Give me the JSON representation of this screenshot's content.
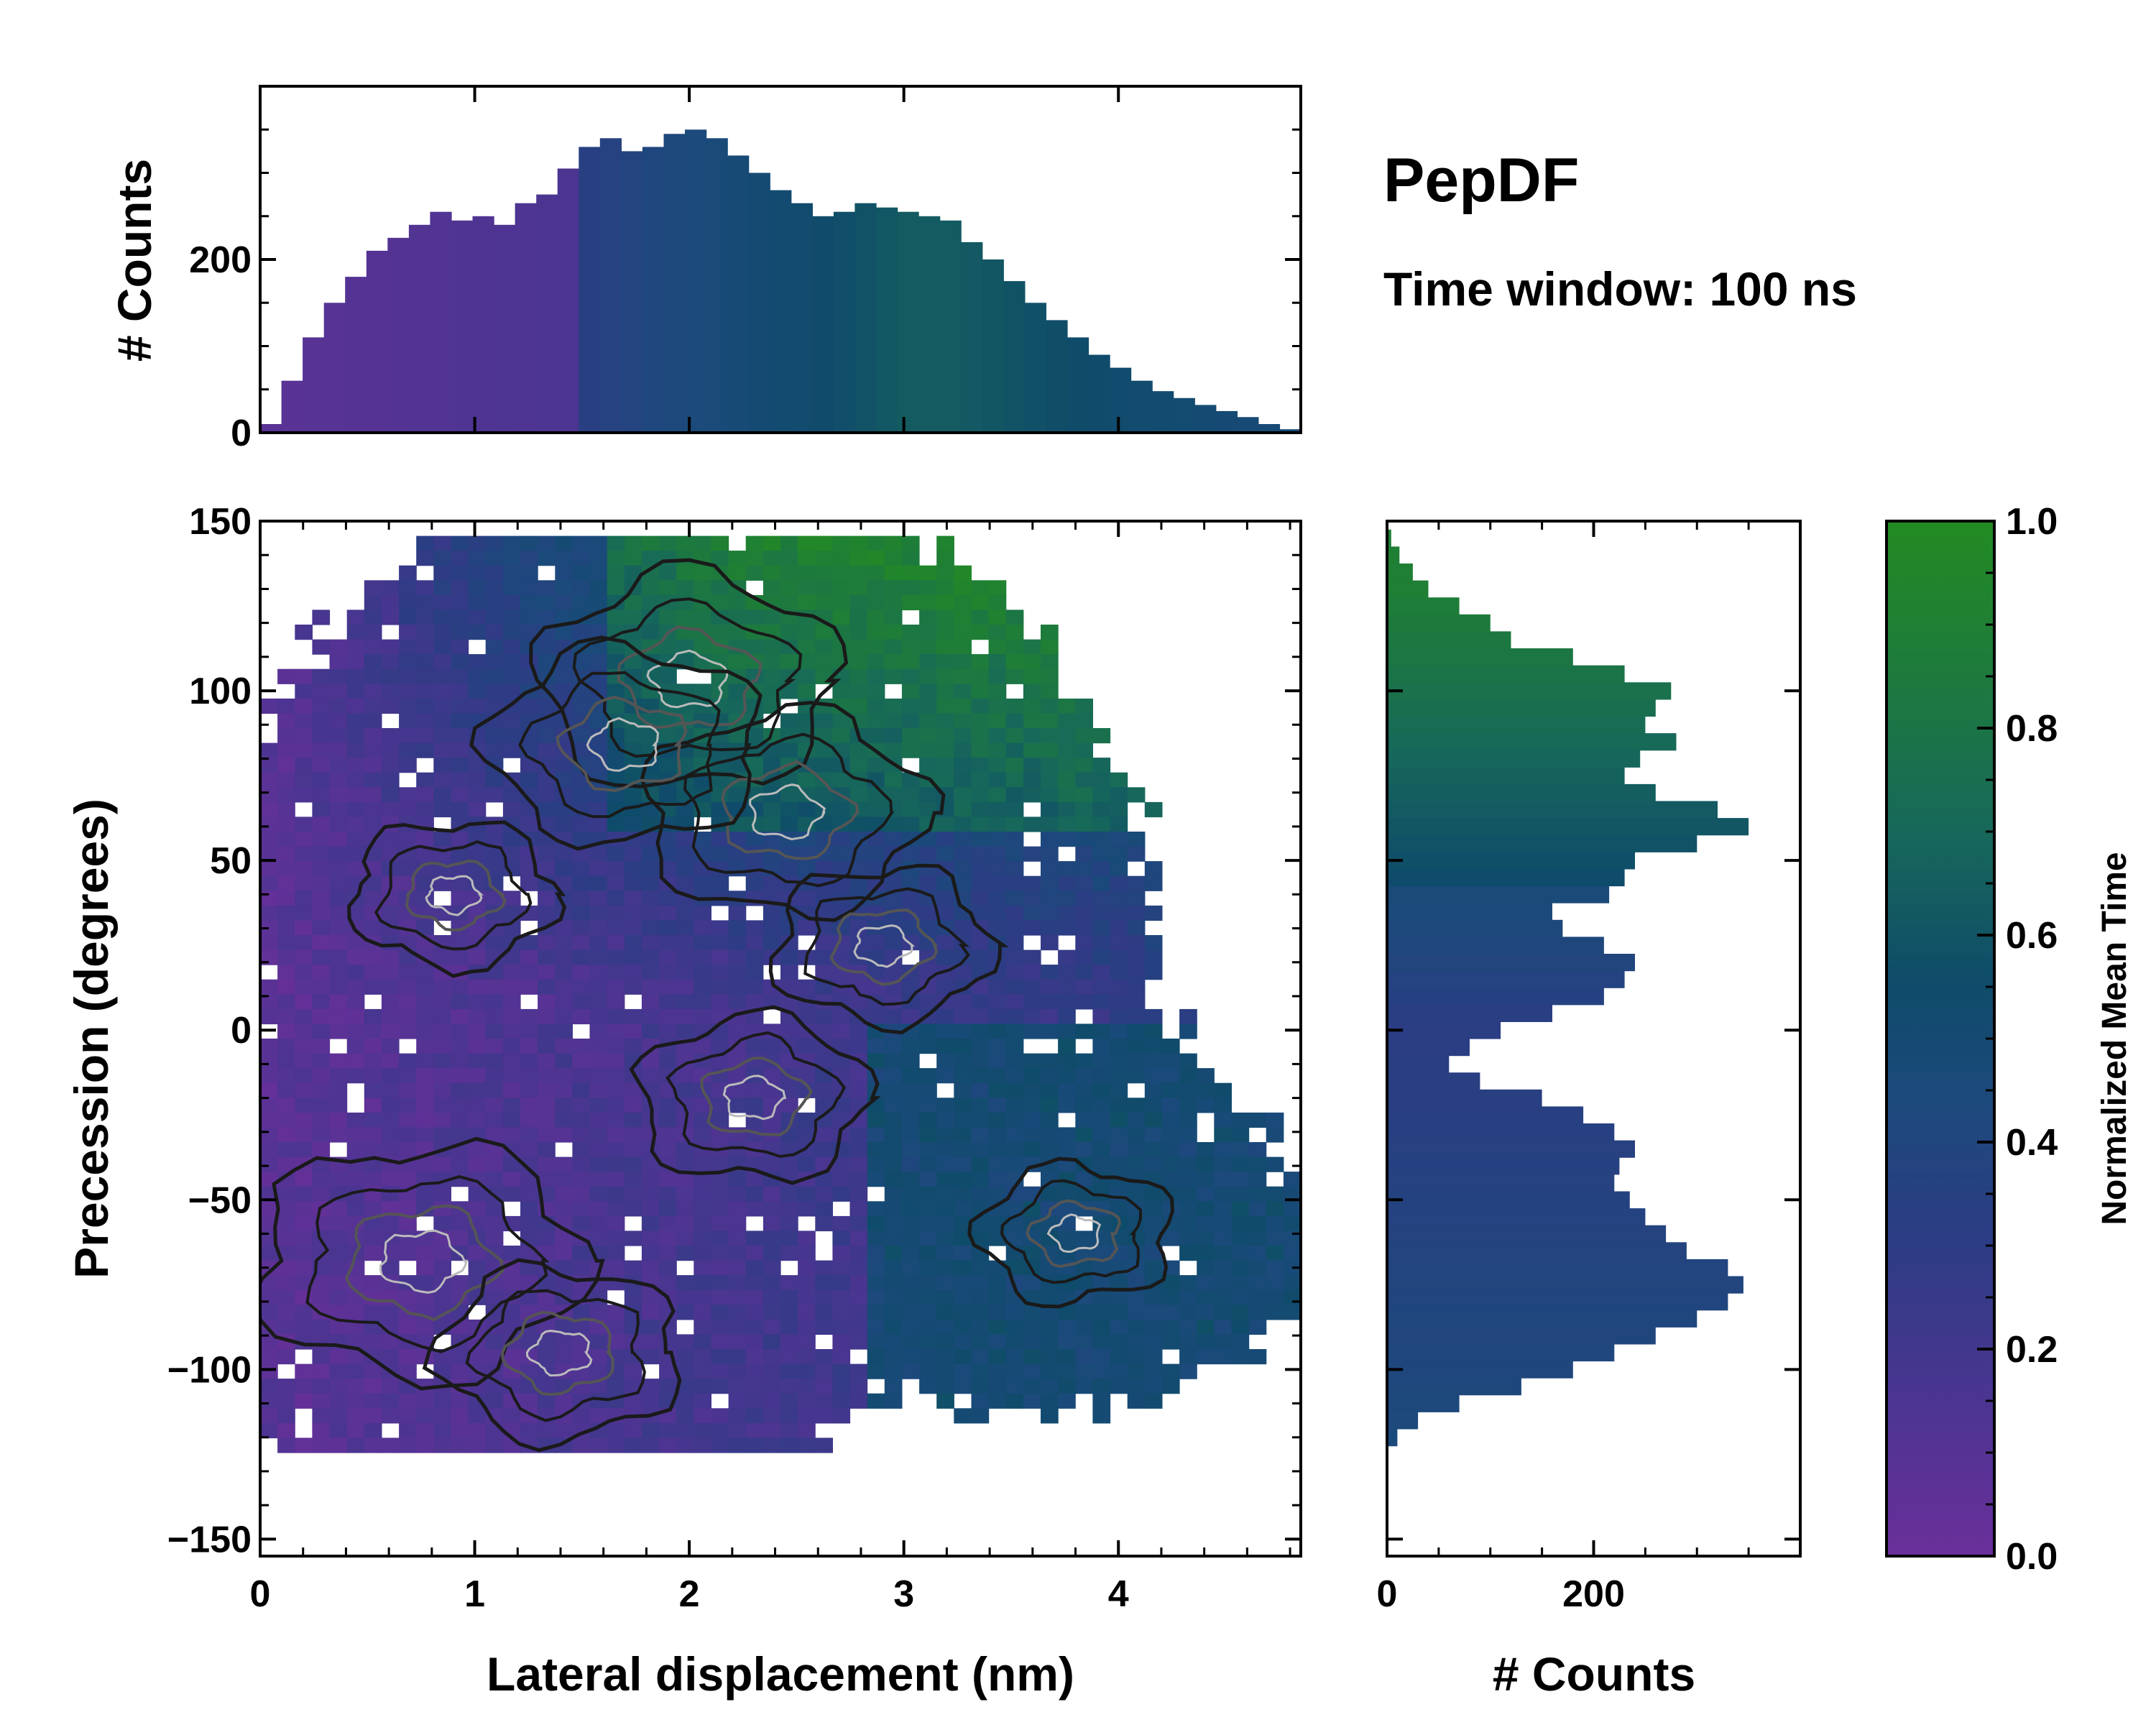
{
  "figure": {
    "title": "PepDF",
    "subtitle": "Time window: 100 ns"
  },
  "colors": {
    "cmap": [
      "#6a2f9a",
      "#4b3591",
      "#2d3c84",
      "#1b4a7b",
      "#0f4b6a",
      "#17685a",
      "#1d7a3d",
      "#238b22"
    ],
    "contour_outer": "#1a1a1a",
    "contour_mid": "#555555",
    "contour_inner": "#bbbbbb"
  },
  "chart_data": [
    {
      "id": "joint-heatmap",
      "type": "heatmap",
      "xlabel": "Lateral displacement (nm)",
      "ylabel": "Precession (degrees)",
      "xlim": [
        0,
        4.85
      ],
      "ylim": [
        -155,
        150
      ],
      "xticks": [
        0,
        1,
        2,
        3,
        4
      ],
      "xtick_labels": [
        "0",
        "1",
        "2",
        "3",
        "4"
      ],
      "yticks": [
        150,
        100,
        50,
        0,
        -50,
        -100,
        -150
      ],
      "ytick_labels": [
        "150",
        "100",
        "50",
        "0",
        "−50",
        "−100",
        "−150"
      ],
      "color_meaning": "Normalized Mean Time",
      "density_peaks": [
        {
          "x": 0.75,
          "y": -68,
          "weight": 1.0
        },
        {
          "x": 2.0,
          "y": 103,
          "weight": 0.85
        },
        {
          "x": 2.45,
          "y": 64,
          "weight": 0.75
        },
        {
          "x": 1.7,
          "y": 84,
          "weight": 0.7
        },
        {
          "x": 1.4,
          "y": -95,
          "weight": 0.55
        },
        {
          "x": 2.3,
          "y": -20,
          "weight": 0.5
        },
        {
          "x": 2.9,
          "y": 25,
          "weight": 0.45
        },
        {
          "x": 0.9,
          "y": 40,
          "weight": 0.4
        },
        {
          "x": 3.8,
          "y": -60,
          "weight": 0.35
        }
      ]
    },
    {
      "id": "x-marginal",
      "type": "bar",
      "ylabel": "# Counts",
      "xlim": [
        0,
        4.85
      ],
      "ylim": [
        0,
        400
      ],
      "yticks": [
        0,
        200
      ],
      "ytick_labels": [
        "0",
        "200"
      ],
      "x": [
        0.0,
        0.1,
        0.2,
        0.3,
        0.4,
        0.5,
        0.6,
        0.7,
        0.8,
        0.9,
        1.0,
        1.1,
        1.2,
        1.3,
        1.4,
        1.5,
        1.6,
        1.7,
        1.8,
        1.9,
        2.0,
        2.1,
        2.2,
        2.3,
        2.4,
        2.5,
        2.6,
        2.7,
        2.8,
        2.9,
        3.0,
        3.1,
        3.2,
        3.3,
        3.4,
        3.5,
        3.6,
        3.7,
        3.8,
        3.9,
        4.0,
        4.1,
        4.2,
        4.3,
        4.4,
        4.5,
        4.6,
        4.7,
        4.8
      ],
      "values": [
        10,
        60,
        110,
        150,
        180,
        210,
        225,
        240,
        255,
        245,
        250,
        240,
        265,
        275,
        305,
        330,
        340,
        325,
        330,
        345,
        350,
        340,
        320,
        300,
        280,
        265,
        250,
        255,
        265,
        260,
        255,
        250,
        245,
        220,
        200,
        175,
        150,
        130,
        110,
        90,
        75,
        60,
        48,
        40,
        32,
        25,
        18,
        10,
        4
      ]
    },
    {
      "id": "y-marginal",
      "type": "bar",
      "orientation": "horizontal",
      "xlabel": "# Counts",
      "xlim": [
        0,
        400
      ],
      "xticks": [
        0,
        200
      ],
      "xtick_labels": [
        "0",
        "200"
      ],
      "y": [
        -125,
        -120,
        -115,
        -110,
        -105,
        -100,
        -95,
        -90,
        -85,
        -80,
        -75,
        -70,
        -65,
        -60,
        -55,
        -50,
        -45,
        -40,
        -35,
        -30,
        -25,
        -20,
        -15,
        -10,
        -5,
        0,
        5,
        10,
        15,
        20,
        25,
        30,
        35,
        40,
        45,
        50,
        55,
        60,
        65,
        70,
        75,
        80,
        85,
        90,
        95,
        100,
        105,
        110,
        115,
        120,
        125,
        130,
        135,
        140,
        145
      ],
      "values": [
        0,
        10,
        30,
        70,
        130,
        180,
        220,
        260,
        300,
        330,
        345,
        330,
        290,
        270,
        250,
        235,
        220,
        225,
        240,
        220,
        190,
        150,
        90,
        60,
        80,
        110,
        160,
        210,
        230,
        240,
        210,
        170,
        160,
        215,
        230,
        240,
        300,
        350,
        320,
        260,
        230,
        245,
        280,
        250,
        260,
        275,
        230,
        180,
        120,
        100,
        70,
        40,
        25,
        12,
        4
      ]
    },
    {
      "id": "colorbar",
      "type": "colorbar",
      "label": "Normalized Mean Time",
      "range": [
        0.0,
        1.0
      ],
      "ticks": [
        0.0,
        0.2,
        0.4,
        0.6,
        0.8,
        1.0
      ],
      "tick_labels": [
        "0.0",
        "0.2",
        "0.4",
        "0.6",
        "0.8",
        "1.0"
      ]
    }
  ]
}
